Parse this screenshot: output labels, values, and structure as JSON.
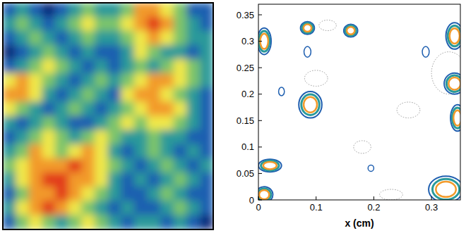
{
  "chart_data": [
    {
      "type": "heatmap",
      "tick_labels": false,
      "colors": [
        "#0d2a7a",
        "#1f5fb0",
        "#2a9a9a",
        "#7cc46b",
        "#f0e84a",
        "#f29a2a",
        "#e23a1e"
      ],
      "cells": [
        [
          1,
          2,
          1,
          0,
          1,
          2,
          3,
          2,
          2,
          3,
          5,
          5,
          4,
          3,
          1,
          1
        ],
        [
          2,
          3,
          2,
          1,
          2,
          3,
          4,
          3,
          3,
          4,
          5,
          6,
          5,
          3,
          2,
          1
        ],
        [
          1,
          2,
          3,
          2,
          1,
          2,
          3,
          2,
          2,
          3,
          4,
          5,
          4,
          3,
          2,
          2
        ],
        [
          0,
          1,
          2,
          3,
          2,
          1,
          2,
          1,
          1,
          2,
          4,
          3,
          2,
          2,
          1,
          2
        ],
        [
          1,
          2,
          3,
          4,
          3,
          2,
          1,
          2,
          1,
          2,
          3,
          2,
          3,
          4,
          3,
          2
        ],
        [
          4,
          5,
          4,
          3,
          2,
          1,
          2,
          3,
          2,
          3,
          4,
          5,
          5,
          4,
          3,
          2
        ],
        [
          5,
          5,
          4,
          2,
          1,
          2,
          3,
          2,
          1,
          4,
          5,
          5,
          4,
          3,
          2,
          1
        ],
        [
          4,
          3,
          2,
          1,
          2,
          3,
          2,
          1,
          2,
          3,
          4,
          5,
          5,
          4,
          2,
          1
        ],
        [
          2,
          1,
          2,
          3,
          2,
          1,
          1,
          2,
          3,
          4,
          3,
          4,
          4,
          3,
          2,
          1
        ],
        [
          1,
          2,
          3,
          4,
          3,
          2,
          3,
          4,
          3,
          2,
          2,
          3,
          2,
          2,
          1,
          1
        ],
        [
          2,
          3,
          5,
          4,
          3,
          4,
          5,
          4,
          2,
          1,
          2,
          3,
          2,
          1,
          2,
          1
        ],
        [
          3,
          4,
          5,
          5,
          5,
          6,
          5,
          4,
          3,
          2,
          1,
          2,
          3,
          2,
          1,
          2
        ],
        [
          2,
          4,
          5,
          6,
          6,
          5,
          5,
          4,
          2,
          1,
          2,
          1,
          2,
          3,
          2,
          1
        ],
        [
          1,
          3,
          5,
          5,
          6,
          5,
          4,
          3,
          2,
          1,
          1,
          2,
          3,
          2,
          1,
          1
        ],
        [
          2,
          4,
          5,
          6,
          5,
          4,
          3,
          2,
          1,
          2,
          1,
          1,
          2,
          3,
          2,
          1
        ],
        [
          1,
          3,
          4,
          3,
          2,
          3,
          4,
          3,
          2,
          1,
          2,
          2,
          1,
          2,
          1,
          0
        ]
      ]
    },
    {
      "type": "contour",
      "xlabel": "x (cm)",
      "xlim": [
        0,
        0.35
      ],
      "ylim": [
        0,
        0.37
      ],
      "xticks": [
        0,
        0.1,
        0.2,
        0.3
      ],
      "yticks": [
        0,
        0.05,
        0.1,
        0.15,
        0.2,
        0.25,
        0.3,
        0.35
      ],
      "blobs": [
        {
          "x": 0.01,
          "y": 0.3,
          "rx": 0.012,
          "ry": 0.025
        },
        {
          "x": 0.085,
          "y": 0.325,
          "rx": 0.012,
          "ry": 0.012
        },
        {
          "x": 0.16,
          "y": 0.32,
          "rx": 0.012,
          "ry": 0.012
        },
        {
          "x": 0.09,
          "y": 0.18,
          "rx": 0.02,
          "ry": 0.025
        },
        {
          "x": 0.02,
          "y": 0.065,
          "rx": 0.02,
          "ry": 0.012
        },
        {
          "x": 0.29,
          "y": 0.28,
          "rx": 0.006,
          "ry": 0.01
        },
        {
          "x": 0.34,
          "y": 0.31,
          "rx": 0.015,
          "ry": 0.025
        },
        {
          "x": 0.34,
          "y": 0.22,
          "rx": 0.018,
          "ry": 0.02
        },
        {
          "x": 0.345,
          "y": 0.155,
          "rx": 0.012,
          "ry": 0.025
        },
        {
          "x": 0.325,
          "y": 0.02,
          "rx": 0.03,
          "ry": 0.025
        },
        {
          "x": 0.01,
          "y": 0.01,
          "rx": 0.015,
          "ry": 0.015
        },
        {
          "x": 0.085,
          "y": 0.28,
          "rx": 0.006,
          "ry": 0.01
        },
        {
          "x": 0.04,
          "y": 0.205,
          "rx": 0.005,
          "ry": 0.008
        },
        {
          "x": 0.195,
          "y": 0.06,
          "rx": 0.005,
          "ry": 0.006
        }
      ],
      "dotted": [
        {
          "x": 0.1,
          "y": 0.23,
          "rx": 0.02,
          "ry": 0.015
        },
        {
          "x": 0.26,
          "y": 0.17,
          "rx": 0.02,
          "ry": 0.015
        },
        {
          "x": 0.18,
          "y": 0.1,
          "rx": 0.015,
          "ry": 0.012
        },
        {
          "x": 0.33,
          "y": 0.24,
          "rx": 0.03,
          "ry": 0.04
        },
        {
          "x": 0.23,
          "y": 0.01,
          "rx": 0.02,
          "ry": 0.01
        },
        {
          "x": 0.12,
          "y": 0.33,
          "rx": 0.015,
          "ry": 0.01
        }
      ]
    }
  ]
}
